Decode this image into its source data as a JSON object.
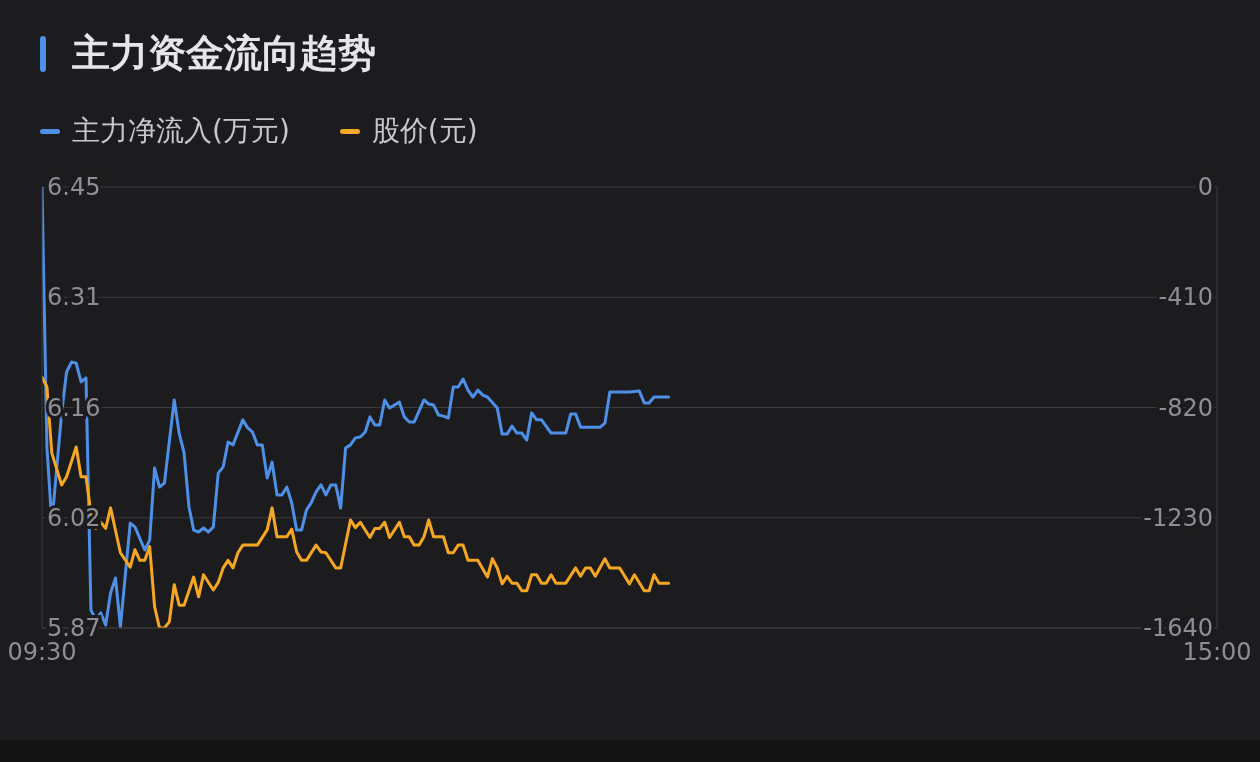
{
  "chart_data": {
    "type": "line",
    "title": "主力资金流向趋势",
    "xlim": [
      9.5,
      15
    ],
    "xticks": [
      {
        "value": 9.5,
        "label": "09:30"
      },
      {
        "value": 15,
        "label": "15:00"
      }
    ],
    "ylim": [
      5.87,
      6.45
    ],
    "yticks": [
      6.45,
      {
        "value": 6.305,
        "label": "6.31"
      },
      6.16,
      {
        "value": 6.015,
        "label": "6.02"
      },
      5.87
    ],
    "y2lim": [
      -1640,
      0
    ],
    "y2ticks": [
      0,
      -410,
      -820,
      -1230,
      -1640
    ],
    "grid": "y",
    "legend": "top left",
    "marker": "none",
    "line_style": "solid",
    "series": [
      {
        "name": "主力净流入(万元)",
        "color": "#4e8fe8",
        "axis": "y2",
        "x": [
          9.5,
          9.523,
          9.546,
          9.592,
          9.615,
          9.638,
          9.66,
          9.683,
          9.706,
          9.729,
          9.752,
          9.775,
          9.798,
          9.821,
          9.844,
          9.867,
          9.913,
          9.935,
          9.981,
          10.004,
          10.027,
          10.05,
          10.073,
          10.119,
          10.142,
          10.165,
          10.188,
          10.21,
          10.233,
          10.256,
          10.279,
          10.302,
          10.325,
          10.348,
          10.371,
          10.394,
          10.44,
          10.463,
          10.485,
          10.508,
          10.531,
          10.554,
          10.577,
          10.6,
          10.623,
          10.646,
          10.669,
          10.692,
          10.715,
          10.738,
          10.76,
          10.783,
          10.806,
          10.829,
          10.852,
          10.875,
          10.898,
          10.921,
          10.944,
          10.967,
          10.99,
          11.013,
          11.035,
          11.058,
          11.081,
          11.104,
          11.127,
          11.173,
          11.196,
          11.219,
          11.242,
          11.288,
          11.31,
          11.333,
          11.356,
          11.379,
          11.402,
          11.425,
          11.448,
          11.471,
          11.494,
          11.517,
          11.54,
          11.563,
          11.585,
          11.631,
          11.654,
          11.677,
          11.7,
          11.723,
          11.746,
          11.769,
          11.792,
          11.815,
          11.838,
          11.883,
          11.952,
          11.975,
          11.998,
          12.021,
          12.113,
          12.135,
          12.158,
          12.25,
          12.296,
          12.319,
          12.342,
          12.365,
          12.433
        ],
        "values": [
          0,
          -967,
          -1250,
          -840,
          -688,
          -651,
          -655,
          -725,
          -710,
          -1573,
          -1610,
          -1584,
          -1629,
          -1510,
          -1454,
          -1636,
          -1250,
          -1264,
          -1350,
          -1313,
          -1045,
          -1116,
          -1101,
          -792,
          -915,
          -989,
          -1190,
          -1276,
          -1283,
          -1268,
          -1283,
          -1264,
          -1064,
          -1041,
          -948,
          -959,
          -866,
          -896,
          -911,
          -959,
          -959,
          -1082,
          -1023,
          -1145,
          -1145,
          -1116,
          -1175,
          -1276,
          -1276,
          -1201,
          -1175,
          -1134,
          -1108,
          -1145,
          -1108,
          -1108,
          -1194,
          -971,
          -959,
          -933,
          -930,
          -911,
          -855,
          -885,
          -885,
          -792,
          -822,
          -800,
          -855,
          -874,
          -874,
          -792,
          -807,
          -811,
          -848,
          -852,
          -859,
          -744,
          -744,
          -714,
          -755,
          -781,
          -755,
          -774,
          -781,
          -822,
          -919,
          -919,
          -889,
          -915,
          -915,
          -941,
          -840,
          -866,
          -866,
          -915,
          -915,
          -844,
          -844,
          -893,
          -893,
          -878,
          -762,
          -762,
          -759,
          -803,
          -803,
          -781,
          -781
        ]
      },
      {
        "name": "股价(元)",
        "color": "#f5a623",
        "axis": "y",
        "x": [
          9.5,
          9.523,
          9.546,
          9.592,
          9.615,
          9.66,
          9.683,
          9.706,
          9.729,
          9.752,
          9.775,
          9.798,
          9.821,
          9.867,
          9.913,
          9.935,
          9.958,
          9.981,
          10.004,
          10.027,
          10.05,
          10.073,
          10.096,
          10.119,
          10.142,
          10.165,
          10.21,
          10.233,
          10.256,
          10.302,
          10.325,
          10.348,
          10.371,
          10.394,
          10.417,
          10.44,
          10.508,
          10.554,
          10.577,
          10.6,
          10.646,
          10.669,
          10.692,
          10.715,
          10.738,
          10.783,
          10.806,
          10.829,
          10.875,
          10.898,
          10.944,
          10.967,
          10.99,
          11.035,
          11.058,
          11.081,
          11.104,
          11.127,
          11.173,
          11.196,
          11.219,
          11.242,
          11.265,
          11.288,
          11.31,
          11.333,
          11.379,
          11.402,
          11.425,
          11.448,
          11.471,
          11.494,
          11.54,
          11.585,
          11.608,
          11.631,
          11.654,
          11.677,
          11.7,
          11.723,
          11.746,
          11.769,
          11.792,
          11.815,
          11.838,
          11.86,
          11.883,
          11.906,
          11.952,
          11.998,
          12.021,
          12.044,
          12.067,
          12.09,
          12.135,
          12.158,
          12.204,
          12.25,
          12.273,
          12.319,
          12.342,
          12.365,
          12.388,
          12.433
        ],
        "values": [
          6.2,
          6.187,
          6.1,
          6.058,
          6.069,
          6.108,
          6.069,
          6.069,
          6.021,
          6.001,
          6.009,
          6.001,
          6.028,
          5.969,
          5.95,
          5.973,
          5.959,
          5.959,
          5.977,
          5.898,
          5.87,
          5.87,
          5.878,
          5.927,
          5.9,
          5.9,
          5.937,
          5.911,
          5.94,
          5.92,
          5.93,
          5.949,
          5.959,
          5.949,
          5.969,
          5.979,
          5.979,
          5.999,
          6.028,
          5.99,
          5.99,
          6.0,
          5.97,
          5.959,
          5.959,
          5.979,
          5.97,
          5.969,
          5.949,
          5.949,
          6.012,
          6.002,
          6.009,
          5.989,
          6.001,
          6.001,
          6.009,
          5.989,
          6.009,
          5.99,
          5.99,
          5.979,
          5.979,
          5.99,
          6.012,
          5.99,
          5.99,
          5.969,
          5.969,
          5.979,
          5.979,
          5.959,
          5.959,
          5.937,
          5.961,
          5.949,
          5.928,
          5.938,
          5.929,
          5.929,
          5.919,
          5.919,
          5.94,
          5.94,
          5.929,
          5.929,
          5.94,
          5.929,
          5.929,
          5.949,
          5.938,
          5.949,
          5.949,
          5.938,
          5.961,
          5.949,
          5.949,
          5.928,
          5.94,
          5.919,
          5.919,
          5.94,
          5.929,
          5.929
        ]
      }
    ]
  }
}
